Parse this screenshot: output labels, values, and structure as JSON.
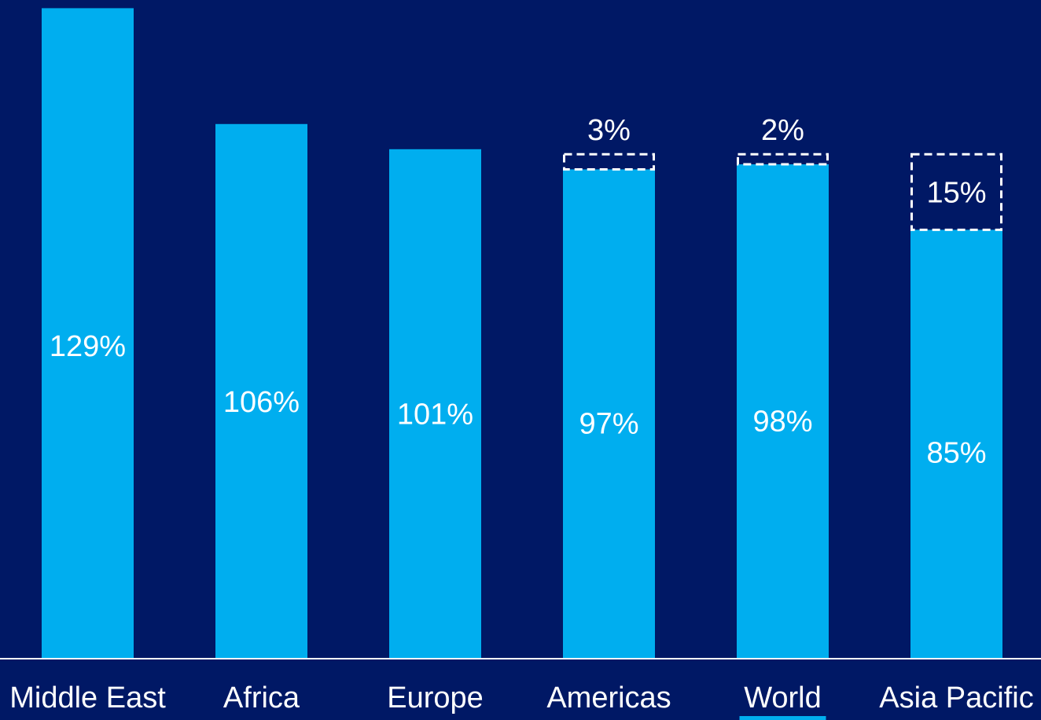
{
  "colors": {
    "background": "#001865",
    "bar": "#00AEEF",
    "text": "#FFFFFF",
    "axis": "#FFFFFF",
    "highlight_underline": "#00AEEF",
    "gap_box_border": "#FFFFFF"
  },
  "chart_data": {
    "type": "bar",
    "stacked": true,
    "categories": [
      "Middle East",
      "Africa",
      "Europe",
      "Americas",
      "World",
      "Asia Pacific"
    ],
    "values": [
      129,
      106,
      101,
      97,
      98,
      85
    ],
    "value_labels": [
      "129%",
      "106%",
      "101%",
      "97%",
      "98%",
      "85%"
    ],
    "gap_values": [
      null,
      null,
      null,
      3,
      2,
      15
    ],
    "gap_labels": [
      null,
      null,
      null,
      "3%",
      "2%",
      "15%"
    ],
    "gap_style": "dashed-outline",
    "highlighted_category": "World",
    "title": "",
    "xlabel": "",
    "ylabel": "",
    "ylim": [
      0,
      130
    ],
    "grid": false,
    "legend": "none"
  }
}
